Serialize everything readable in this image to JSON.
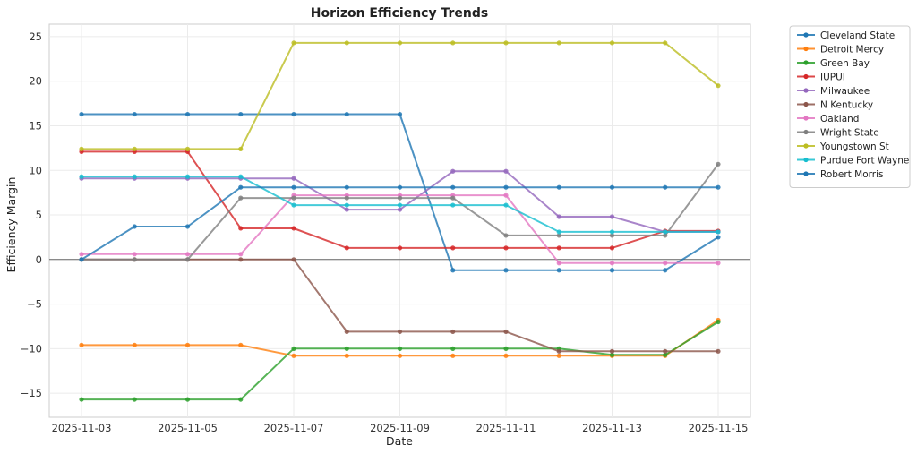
{
  "chart_data": {
    "type": "line",
    "title": "Horizon Efficiency Trends",
    "xlabel": "Date",
    "ylabel": "Efficiency Margin",
    "x": [
      "2025-11-03",
      "2025-11-04",
      "2025-11-05",
      "2025-11-06",
      "2025-11-07",
      "2025-11-08",
      "2025-11-09",
      "2025-11-10",
      "2025-11-11",
      "2025-11-12",
      "2025-11-13",
      "2025-11-14",
      "2025-11-15"
    ],
    "x_ticks": [
      "2025-11-03",
      "2025-11-05",
      "2025-11-07",
      "2025-11-09",
      "2025-11-11",
      "2025-11-13",
      "2025-11-15"
    ],
    "y_ticks": [
      -15,
      -10,
      -5,
      0,
      5,
      10,
      15,
      20,
      25
    ],
    "ylim": [
      -17.7,
      26.4
    ],
    "grid": true,
    "zero_line": true,
    "legend_position": "outside-top-right",
    "series": [
      {
        "name": "Cleveland State",
        "color": "#1f77b4",
        "values": [
          16.3,
          16.3,
          16.3,
          16.3,
          16.3,
          16.3,
          16.3,
          -1.2,
          -1.2,
          -1.2,
          -1.2,
          -1.2,
          2.5
        ]
      },
      {
        "name": "Detroit Mercy",
        "color": "#ff7f0e",
        "values": [
          -9.6,
          -9.6,
          -9.6,
          -9.6,
          -10.8,
          -10.8,
          -10.8,
          -10.8,
          -10.8,
          -10.8,
          -10.8,
          -10.8,
          -6.8
        ]
      },
      {
        "name": "Green Bay",
        "color": "#2ca02c",
        "values": [
          -15.7,
          -15.7,
          -15.7,
          -15.7,
          -10.0,
          -10.0,
          -10.0,
          -10.0,
          -10.0,
          -10.0,
          -10.7,
          -10.7,
          -7.0
        ]
      },
      {
        "name": "IUPUI",
        "color": "#d62728",
        "values": [
          12.1,
          12.1,
          12.1,
          3.5,
          3.5,
          1.3,
          1.3,
          1.3,
          1.3,
          1.3,
          1.3,
          3.2,
          3.2
        ]
      },
      {
        "name": "Milwaukee",
        "color": "#9467bd",
        "values": [
          9.1,
          9.1,
          9.1,
          9.1,
          9.1,
          5.6,
          5.6,
          9.9,
          9.9,
          4.8,
          4.8,
          3.1,
          3.1
        ]
      },
      {
        "name": "N Kentucky",
        "color": "#8c564b",
        "values": [
          0,
          0,
          0,
          0,
          0,
          -8.1,
          -8.1,
          -8.1,
          -8.1,
          -10.3,
          -10.3,
          -10.3,
          -10.3
        ]
      },
      {
        "name": "Oakland",
        "color": "#e377c2",
        "values": [
          0.6,
          0.6,
          0.6,
          0.6,
          7.2,
          7.2,
          7.2,
          7.2,
          7.2,
          -0.4,
          -0.4,
          -0.4,
          -0.4
        ]
      },
      {
        "name": "Wright State",
        "color": "#7f7f7f",
        "values": [
          0,
          0,
          0,
          6.9,
          6.9,
          6.9,
          6.9,
          6.9,
          2.7,
          2.7,
          2.7,
          2.7,
          10.7
        ]
      },
      {
        "name": "Youngstown St",
        "color": "#bcbd22",
        "values": [
          12.4,
          12.4,
          12.4,
          12.4,
          24.3,
          24.3,
          24.3,
          24.3,
          24.3,
          24.3,
          24.3,
          24.3,
          19.5
        ]
      },
      {
        "name": "Purdue Fort Wayne",
        "color": "#17becf",
        "values": [
          9.3,
          9.3,
          9.3,
          9.3,
          6.1,
          6.1,
          6.1,
          6.1,
          6.1,
          3.1,
          3.1,
          3.1,
          3.1
        ]
      },
      {
        "name": "Robert Morris",
        "color": "#1f77b4",
        "values": [
          0,
          3.7,
          3.7,
          8.1,
          8.1,
          8.1,
          8.1,
          8.1,
          8.1,
          8.1,
          8.1,
          8.1,
          8.1
        ]
      }
    ]
  }
}
